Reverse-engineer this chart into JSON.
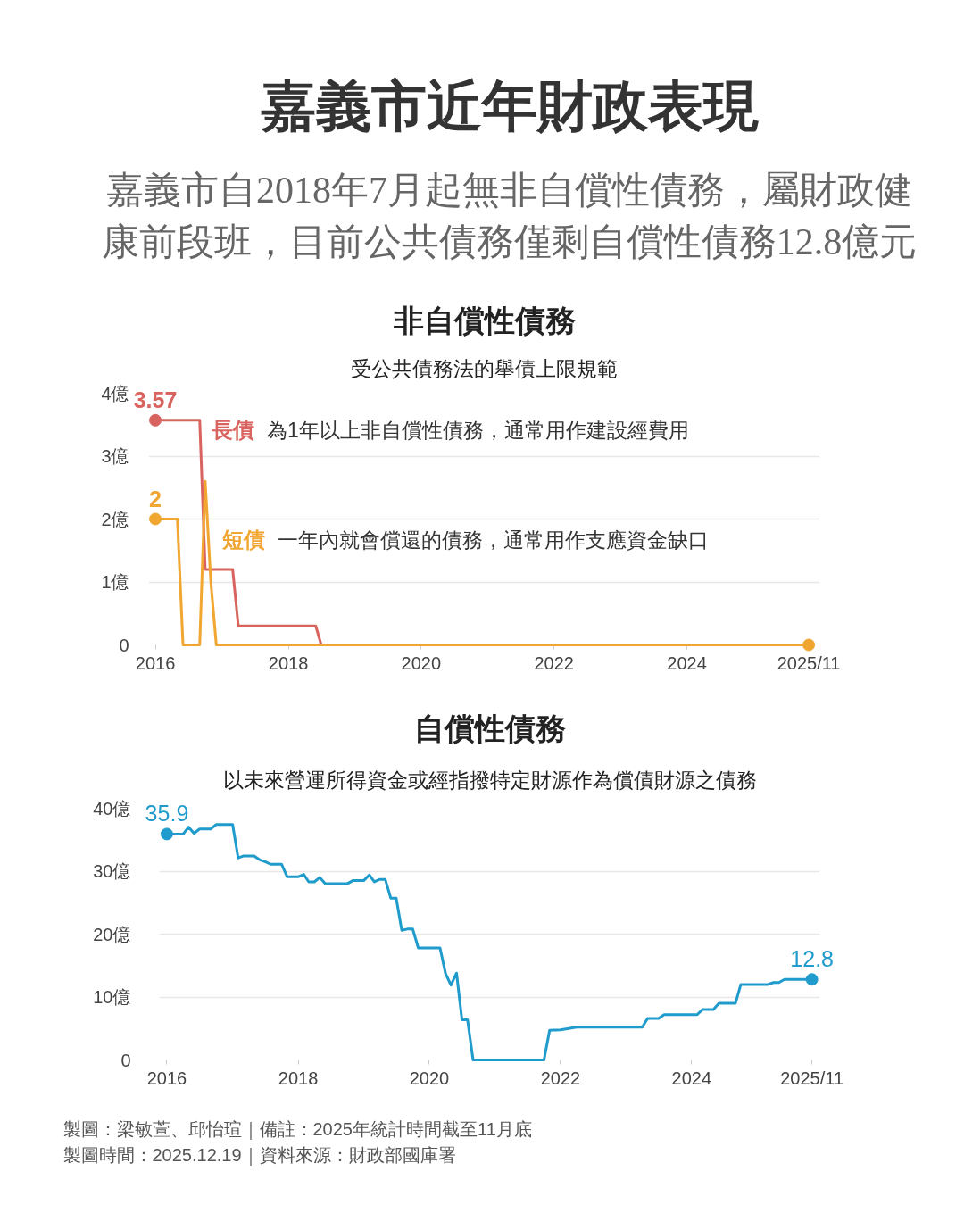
{
  "chart_data": [
    {
      "type": "other",
      "title": "嘉義市近年財政表現",
      "subtitle": "嘉義市自2018年7月起無非自償性債務，屬財政健康前段班，目前公共債務僅剩自償性債務12.8億元"
    },
    {
      "type": "line",
      "title": "非自償性債務",
      "subtitle": "受公共債務法的舉債上限規範",
      "annotations": [
        "為1年以上非自償性債務，通常用作建設經費用",
        "一年內就會償還的債務，通常用作支應資金缺口"
      ],
      "xlim": [
        "2015-11-25",
        "2026-01-01"
      ],
      "xticks": [
        "2016",
        "2018",
        "2020",
        "2022",
        "2024",
        {
          "value": "2025-11",
          "label": "2025/11"
        }
      ],
      "ylim": [
        0,
        4
      ],
      "yticks": [
        0,
        {
          "value": 1,
          "label": "1億"
        },
        {
          "value": 2,
          "label": "2億"
        },
        {
          "value": 3,
          "label": "3億"
        },
        {
          "value": 4,
          "label": "4億"
        }
      ],
      "grid": "y",
      "line_style": "solid",
      "series": [
        {
          "name": "長債",
          "color": "#d9645f",
          "x": [
            "2016-01",
            "2016-09",
            "2016-10",
            "2017-03",
            "2017-04",
            "2018-06",
            "2018-07"
          ],
          "values": [
            3.57,
            3.57,
            1.2,
            1.2,
            0.3,
            0.3,
            0
          ]
        },
        {
          "name": "短債",
          "color": "#f0a630",
          "x": [
            "2016-01",
            "2016-05",
            "2016-06",
            "2016-09",
            "2016-10",
            "2016-11",
            "2016-12",
            "2025-11"
          ],
          "values": [
            2,
            2,
            0,
            0,
            2.6,
            1.0,
            0,
            0
          ]
        },
        {
          "type": "scatter",
          "marker": "circle",
          "color": "#d9645f",
          "x": [
            "2016-01"
          ],
          "values": [
            3.57
          ],
          "value_labels": [
            "3.57"
          ]
        },
        {
          "type": "scatter",
          "marker": "circle",
          "color": "#f0a630",
          "x": [
            "2016-01",
            "2025-11"
          ],
          "values": [
            2,
            0
          ],
          "value_labels": [
            "2",
            null
          ]
        }
      ]
    },
    {
      "type": "line",
      "title": "自償性債務",
      "subtitle": "以未來營運所得資金或經指撥特定財源作為償債財源之債務",
      "xlim": [
        "2015-11-20",
        "2025-12-15"
      ],
      "xticks": [
        "2016",
        "2018",
        "2020",
        "2022",
        "2024",
        {
          "value": "2025-11",
          "label": "2025/11"
        }
      ],
      "ylim": [
        0,
        40
      ],
      "yticks": [
        0,
        {
          "value": 10,
          "label": "10億"
        },
        {
          "value": 20,
          "label": "20億"
        },
        {
          "value": 30,
          "label": "30億"
        },
        {
          "value": 40,
          "label": "40億"
        }
      ],
      "grid": "y",
      "line_style": "solid",
      "series": [
        {
          "color": "#1f9bcc",
          "x": [
            "2016-01",
            "2016-04",
            "2016-05",
            "2016-06",
            "2016-07",
            "2016-09",
            "2016-10",
            "2017-01",
            "2017-02",
            "2017-03",
            "2017-05",
            "2017-06",
            "2017-07",
            "2017-08",
            "2017-10",
            "2017-11",
            "2018-01",
            "2018-02",
            "2018-03",
            "2018-04",
            "2018-05",
            "2018-06",
            "2018-10",
            "2018-11",
            "2019-01",
            "2019-02",
            "2019-03",
            "2019-04",
            "2019-05",
            "2019-06",
            "2019-07",
            "2019-08",
            "2019-09",
            "2019-10",
            "2019-11",
            "2020-03",
            "2020-04",
            "2020-05",
            "2020-06",
            "2020-07",
            "2020-08",
            "2020-09",
            "2021-10",
            "2021-11",
            "2022-01",
            "2022-04",
            "2023-04",
            "2023-05",
            "2023-07",
            "2023-08",
            "2024-02",
            "2024-03",
            "2024-05",
            "2024-06",
            "2024-09",
            "2024-10",
            "2025-03",
            "2025-04",
            "2025-05",
            "2025-06",
            "2025-11"
          ],
          "values": [
            35.9,
            35.9,
            37.0,
            36.0,
            36.7,
            36.7,
            37.4,
            37.4,
            32.1,
            32.4,
            32.4,
            31.8,
            31.5,
            31.1,
            31.1,
            29.1,
            29.1,
            29.5,
            28.3,
            28.3,
            29.0,
            28.0,
            28.0,
            28.5,
            28.5,
            29.4,
            28.3,
            28.7,
            28.7,
            25.7,
            25.7,
            20.6,
            20.8,
            20.8,
            17.8,
            17.8,
            13.7,
            11.9,
            13.8,
            6.4,
            6.4,
            0,
            0,
            4.7,
            4.8,
            5.2,
            5.2,
            6.6,
            6.6,
            7.2,
            7.2,
            8.0,
            8.0,
            9.0,
            9.0,
            12.0,
            12.0,
            12.3,
            12.3,
            12.8,
            12.8
          ]
        },
        {
          "type": "scatter",
          "marker": "circle",
          "color": "#1f9bcc",
          "x": [
            "2016-01",
            "2025-11"
          ],
          "values": [
            35.9,
            12.8
          ],
          "value_labels": [
            "35.9",
            "12.8"
          ]
        }
      ]
    },
    {
      "type": "other",
      "annotations": [
        "製圖：梁敏萱、邱怡瑄｜備註：2025年統計時間截至11月底",
        "製圖時間：2025.12.19｜資料來源：財政部國庫署"
      ]
    }
  ]
}
